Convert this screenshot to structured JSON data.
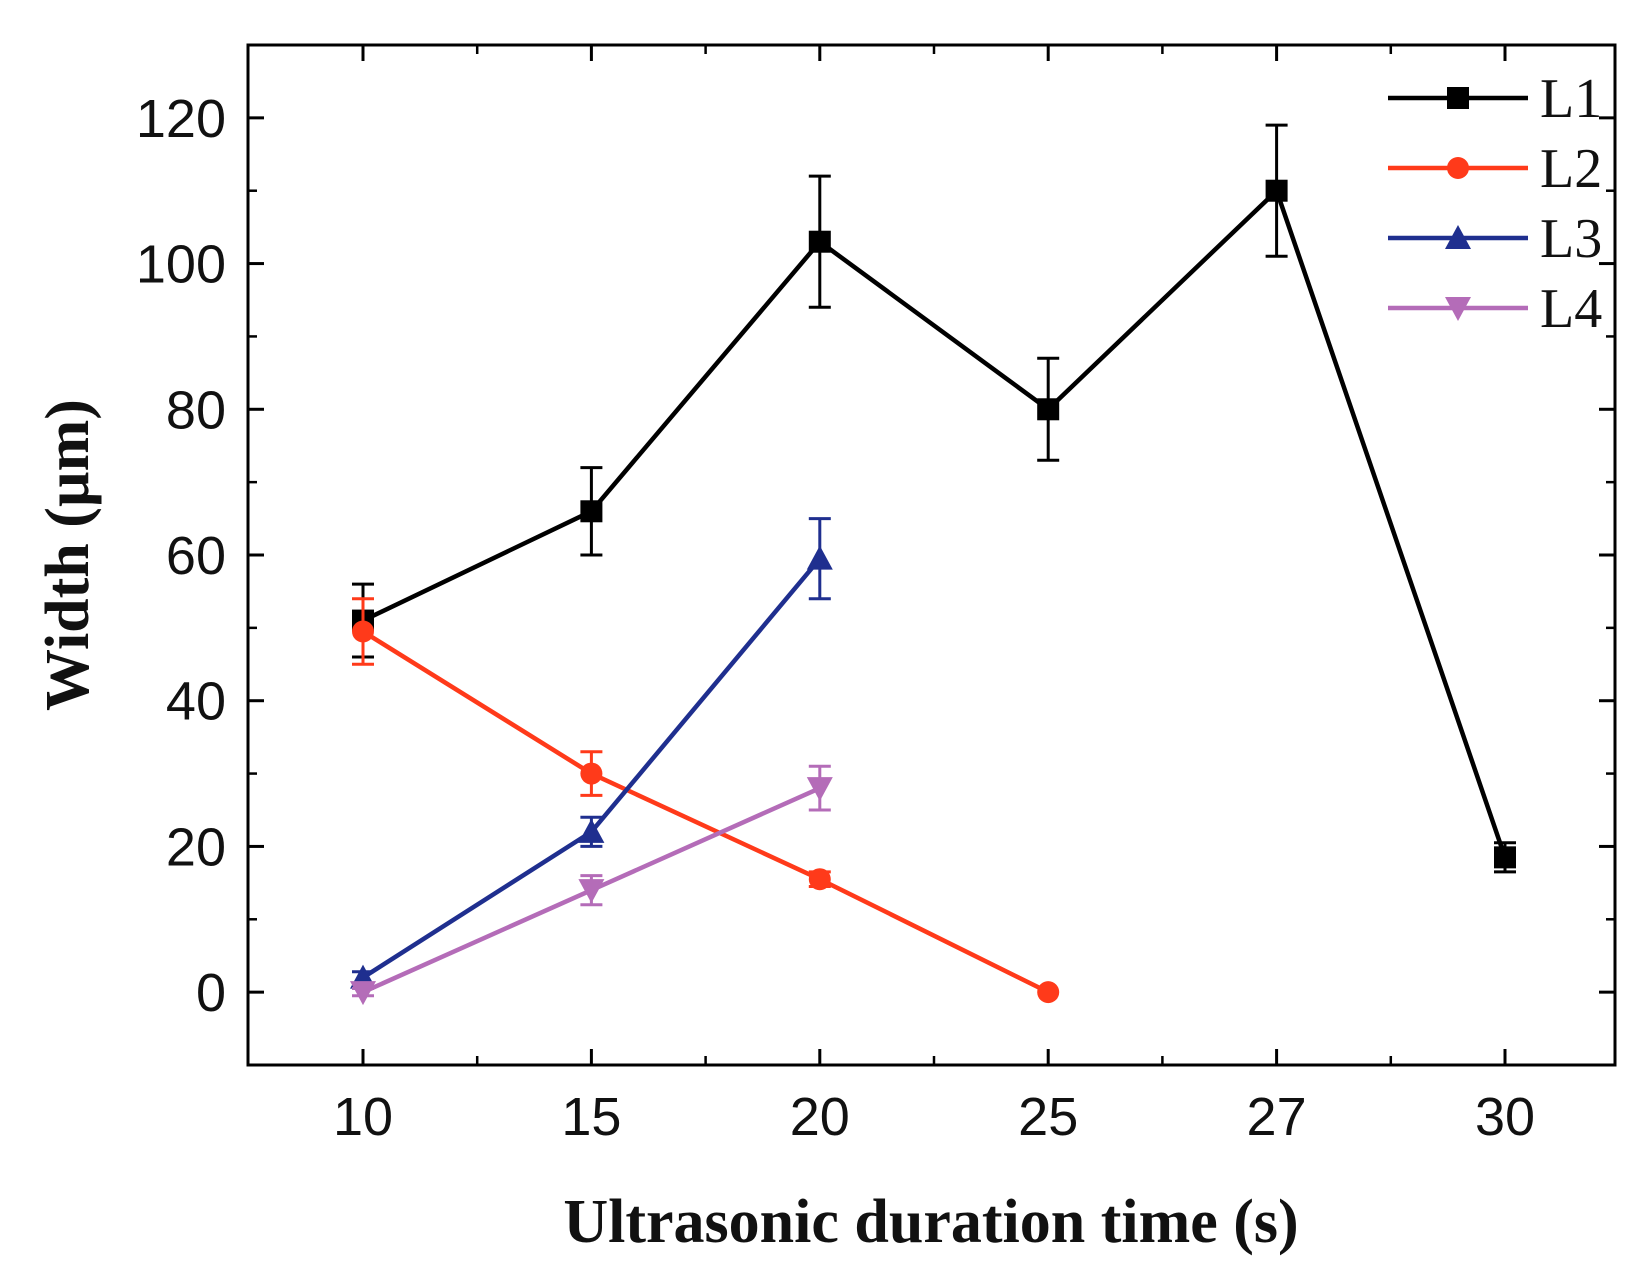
{
  "chart_data": {
    "type": "line",
    "title": "",
    "xlabel": "Ultrasonic duration time (s)",
    "ylabel": "Width (µm)",
    "categories": [
      "10",
      "15",
      "20",
      "25",
      "27",
      "30"
    ],
    "ylim": [
      -10,
      130
    ],
    "yticks": [
      0,
      20,
      40,
      60,
      80,
      100,
      120
    ],
    "legend_position": "top-right",
    "series": [
      {
        "name": "L1",
        "color": "#000000",
        "marker": "square",
        "values": [
          51,
          66,
          103,
          80,
          110,
          18.5
        ],
        "errors": [
          5,
          6,
          9,
          7,
          9,
          2
        ]
      },
      {
        "name": "L2",
        "color": "#ff3a1a",
        "marker": "circle",
        "values": [
          49.5,
          30,
          15.5,
          0,
          null,
          null
        ],
        "errors": [
          4.5,
          3,
          1,
          0,
          null,
          null
        ]
      },
      {
        "name": "L3",
        "color": "#1f2f8f",
        "marker": "triangle-up",
        "values": [
          2,
          22,
          59.5,
          null,
          null,
          null
        ],
        "errors": [
          0.8,
          2,
          5.5,
          null,
          null,
          null
        ]
      },
      {
        "name": "L4",
        "color": "#b46cb8",
        "marker": "triangle-down",
        "values": [
          0,
          14,
          28,
          null,
          null,
          null
        ],
        "errors": [
          0.5,
          2,
          3,
          null,
          null,
          null
        ]
      }
    ]
  }
}
